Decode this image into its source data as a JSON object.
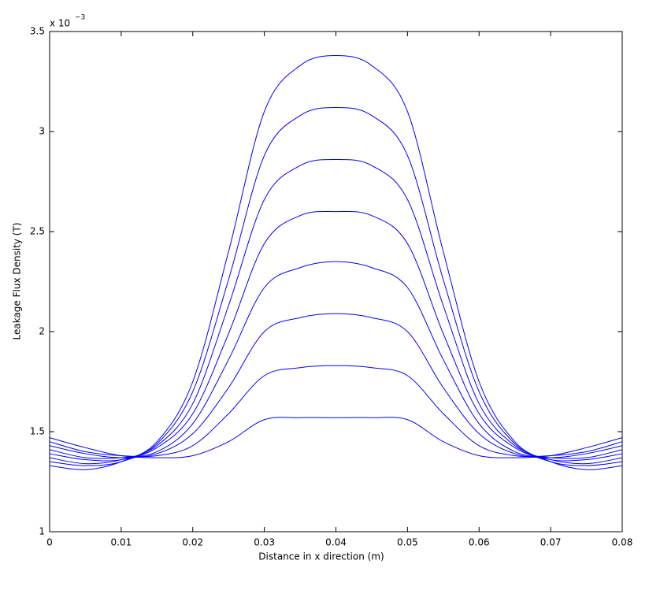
{
  "chart_data": {
    "type": "line",
    "xlabel": "Distance in x direction (m)",
    "ylabel": "Leakage Flux Density (T)",
    "y_multiplier": "x 10",
    "y_exponent": "−3",
    "color": "#0000ff",
    "x": [
      0,
      0.005,
      0.01,
      0.015,
      0.02,
      0.025,
      0.03,
      0.035,
      0.04,
      0.045,
      0.05,
      0.055,
      0.06,
      0.065,
      0.07,
      0.075,
      0.08
    ],
    "series": [
      {
        "values": [
          1.47,
          1.42,
          1.38,
          1.37,
          1.38,
          1.45,
          1.56,
          1.57,
          1.57,
          1.57,
          1.56,
          1.45,
          1.38,
          1.37,
          1.38,
          1.42,
          1.47
        ]
      },
      {
        "values": [
          1.45,
          1.4,
          1.38,
          1.38,
          1.43,
          1.59,
          1.78,
          1.82,
          1.83,
          1.82,
          1.78,
          1.59,
          1.43,
          1.38,
          1.38,
          1.4,
          1.45
        ]
      },
      {
        "values": [
          1.43,
          1.39,
          1.37,
          1.39,
          1.49,
          1.72,
          2.0,
          2.07,
          2.09,
          2.07,
          2.0,
          1.72,
          1.49,
          1.39,
          1.37,
          1.39,
          1.43
        ]
      },
      {
        "values": [
          1.41,
          1.37,
          1.37,
          1.4,
          1.54,
          1.86,
          2.22,
          2.32,
          2.35,
          2.32,
          2.22,
          1.86,
          1.54,
          1.4,
          1.37,
          1.37,
          1.41
        ]
      },
      {
        "values": [
          1.39,
          1.36,
          1.36,
          1.42,
          1.59,
          1.99,
          2.44,
          2.58,
          2.6,
          2.58,
          2.44,
          1.99,
          1.59,
          1.42,
          1.36,
          1.36,
          1.39
        ]
      },
      {
        "values": [
          1.37,
          1.34,
          1.36,
          1.43,
          1.64,
          2.13,
          2.66,
          2.83,
          2.86,
          2.83,
          2.66,
          2.13,
          1.64,
          1.43,
          1.36,
          1.34,
          1.37
        ]
      },
      {
        "values": [
          1.35,
          1.33,
          1.35,
          1.44,
          1.7,
          2.26,
          2.88,
          3.08,
          3.12,
          3.08,
          2.88,
          2.26,
          1.7,
          1.44,
          1.35,
          1.33,
          1.35
        ]
      },
      {
        "values": [
          1.33,
          1.31,
          1.35,
          1.45,
          1.75,
          2.4,
          3.1,
          3.33,
          3.38,
          3.33,
          3.1,
          2.4,
          1.75,
          1.45,
          1.35,
          1.31,
          1.33
        ]
      }
    ],
    "xlim": [
      0,
      0.08
    ],
    "xticks": [
      0,
      0.01,
      0.02,
      0.03,
      0.04,
      0.05,
      0.06,
      0.07,
      0.08
    ],
    "ylim": [
      1,
      3.5
    ],
    "yticks": [
      1,
      1.5,
      2,
      2.5,
      3,
      3.5
    ]
  }
}
